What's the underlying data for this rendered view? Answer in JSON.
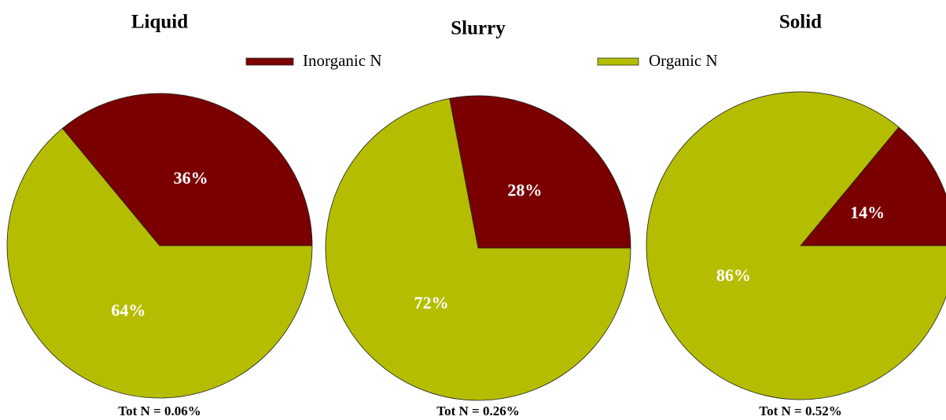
{
  "chart_data": [
    {
      "type": "pie",
      "title": "Liquid",
      "categories": [
        "Inorganic N",
        "Organic N"
      ],
      "values": [
        36,
        64
      ],
      "value_labels": [
        "36%",
        "64%"
      ],
      "colors": [
        "#7a0000",
        "#b5bd00"
      ],
      "annotation": "Tot N = 0.06%"
    },
    {
      "type": "pie",
      "title": "Slurry",
      "categories": [
        "Inorganic N",
        "Organic N"
      ],
      "values": [
        28,
        72
      ],
      "value_labels": [
        "28%",
        "72%"
      ],
      "colors": [
        "#7a0000",
        "#b5bd00"
      ],
      "annotation": "Tot N = 0.26%"
    },
    {
      "type": "pie",
      "title": "Solid",
      "categories": [
        "Inorganic N",
        "Organic N"
      ],
      "values": [
        14,
        86
      ],
      "value_labels": [
        "14%",
        "86%"
      ],
      "colors": [
        "#7a0000",
        "#b5bd00"
      ],
      "annotation": "Tot N = 0.52%"
    }
  ]
}
